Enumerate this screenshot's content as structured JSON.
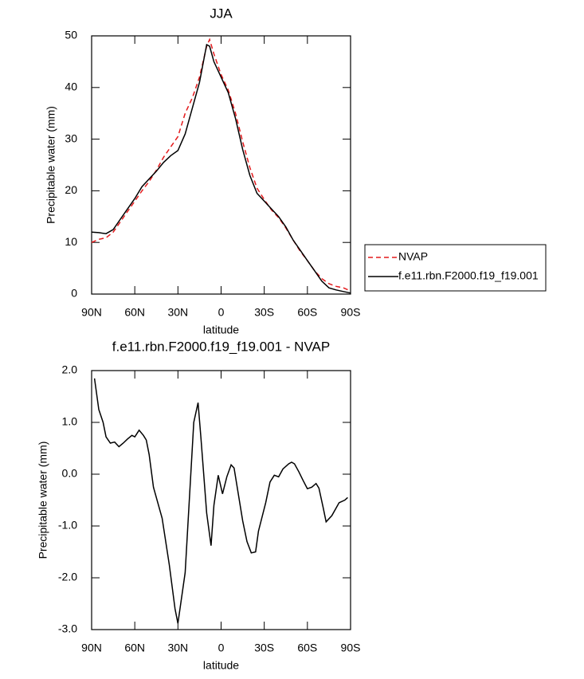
{
  "chart_data": [
    {
      "type": "line",
      "title": "JJA",
      "ylabel": "Precipitable water (mm)",
      "xlabel": "latitude",
      "x": [
        90,
        85,
        80,
        75,
        70,
        65,
        60,
        55,
        50,
        45,
        40,
        35,
        30,
        25,
        20,
        15,
        10,
        8,
        5,
        0,
        -5,
        -10,
        -15,
        -20,
        -25,
        -30,
        -35,
        -40,
        -45,
        -50,
        -55,
        -60,
        -65,
        -70,
        -75,
        -80,
        -85,
        -90
      ],
      "series": [
        {
          "name": "NVAP",
          "color": "#e41a1c",
          "dashed": true,
          "values": [
            10,
            10.6,
            10.9,
            12,
            14,
            16,
            18,
            20,
            21.8,
            24,
            26.5,
            28.5,
            30.5,
            35,
            38,
            42,
            48,
            49.3,
            46.5,
            42.5,
            39.5,
            35,
            29.5,
            24.5,
            20.5,
            18.3,
            16.3,
            14.8,
            12.8,
            10.5,
            8.3,
            6.5,
            4.5,
            3,
            2,
            1.5,
            1.2,
            0.6
          ]
        },
        {
          "name": "f.e11.rbn.F2000.f19_f19.001",
          "color": "#000000",
          "dashed": false,
          "values": [
            12,
            11.9,
            11.7,
            12.5,
            14.5,
            16.5,
            18.5,
            20.8,
            22.3,
            23.8,
            25.5,
            26.8,
            27.8,
            31,
            36,
            41,
            48.3,
            48,
            45,
            42,
            39,
            34,
            28,
            23,
            19.5,
            18,
            16.5,
            15,
            13,
            10.5,
            8.5,
            6.5,
            4.5,
            2.5,
            1.2,
            0.8,
            0.5,
            0.2
          ]
        }
      ],
      "xlim": [
        90,
        -90
      ],
      "xticks": [
        {
          "value": 90,
          "label": "90N"
        },
        {
          "value": 60,
          "label": "60N"
        },
        {
          "value": 30,
          "label": "30N"
        },
        0,
        {
          "value": -30,
          "label": "30S"
        },
        {
          "value": -60,
          "label": "60S"
        },
        {
          "value": -90,
          "label": "90S"
        }
      ],
      "ylim": [
        0,
        50
      ],
      "yticks": [
        0,
        10,
        20,
        30,
        40,
        50
      ],
      "legend": "right"
    },
    {
      "type": "line",
      "title": "f.e11.rbn.F2000.f19_f19.001 - NVAP",
      "ylabel": "Precipitable water (mm)",
      "xlabel": "latitude",
      "x": [
        88,
        85,
        82,
        80,
        77,
        74,
        71,
        68,
        65,
        62,
        60,
        57,
        54,
        52,
        50,
        47,
        41,
        36,
        32,
        30,
        25,
        19,
        16,
        14,
        10,
        7,
        5,
        2,
        -1,
        -4,
        -7,
        -9,
        -15,
        -18,
        -21,
        -24,
        -26,
        -31,
        -34,
        -37,
        -40,
        -43,
        -47,
        -49,
        -51,
        -54,
        -57,
        -60,
        -63,
        -66,
        -68,
        -71,
        -73,
        -77,
        -82,
        -86,
        -88
      ],
      "values": [
        1.85,
        1.25,
        1.0,
        0.72,
        0.6,
        0.62,
        0.53,
        0.6,
        0.68,
        0.75,
        0.72,
        0.85,
        0.75,
        0.66,
        0.38,
        -0.25,
        -0.85,
        -1.75,
        -2.6,
        -2.88,
        -1.9,
        1.0,
        1.38,
        0.7,
        -0.75,
        -1.38,
        -0.6,
        -0.02,
        -0.38,
        -0.05,
        0.18,
        0.12,
        -0.9,
        -1.3,
        -1.52,
        -1.5,
        -1.1,
        -0.55,
        -0.15,
        -0.02,
        -0.05,
        0.1,
        0.2,
        0.23,
        0.2,
        0.05,
        -0.12,
        -0.28,
        -0.25,
        -0.18,
        -0.27,
        -0.65,
        -0.92,
        -0.8,
        -0.55,
        -0.5,
        -0.45
      ],
      "color": "#000000",
      "xlim": [
        90,
        -90
      ],
      "xticks": [
        {
          "value": 90,
          "label": "90N"
        },
        {
          "value": 60,
          "label": "60N"
        },
        {
          "value": 30,
          "label": "30N"
        },
        0,
        {
          "value": -30,
          "label": "30S"
        },
        {
          "value": -60,
          "label": "60S"
        },
        {
          "value": -90,
          "label": "90S"
        }
      ],
      "ylim": [
        -3,
        2
      ],
      "yticks": [
        {
          "value": -3,
          "label": "-3.0"
        },
        {
          "value": -2,
          "label": "-2.0"
        },
        {
          "value": -1,
          "label": "-1.0"
        },
        {
          "value": 0,
          "label": "0.0"
        },
        {
          "value": 1,
          "label": "1.0"
        },
        {
          "value": 2,
          "label": "2.0"
        }
      ]
    }
  ]
}
